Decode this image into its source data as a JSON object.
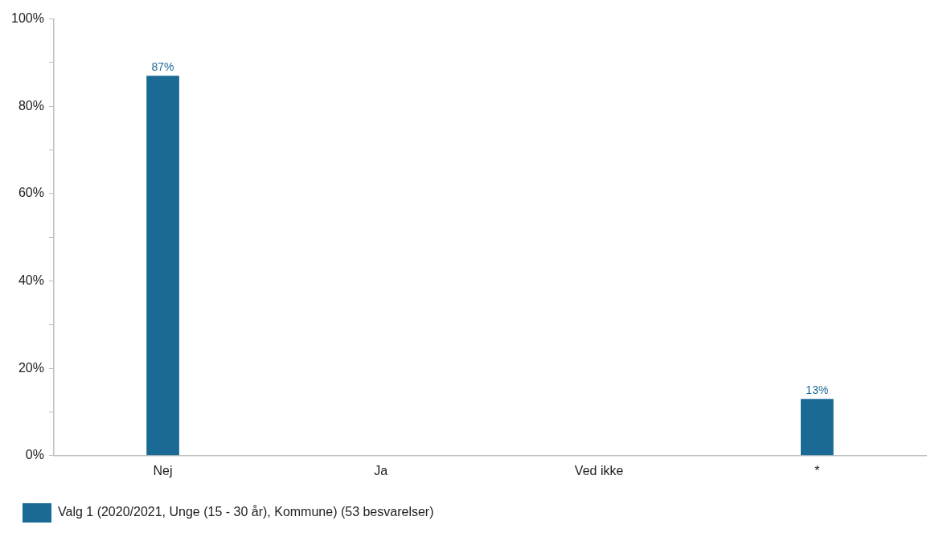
{
  "chart_data": {
    "type": "bar",
    "categories": [
      "Nej",
      "Ja",
      "Ved ikke",
      "*"
    ],
    "series": [
      {
        "name": "Valg 1 (2020/2021, Unge (15 - 30 år), Kommune) (53 besvarelser)",
        "color": "#1b6a96",
        "values": [
          87,
          null,
          null,
          13
        ]
      }
    ],
    "ylim": [
      0,
      100
    ],
    "yticks": [
      {
        "value": 0,
        "label": "0%"
      },
      {
        "value": 10,
        "label": null
      },
      {
        "value": 20,
        "label": "20%"
      },
      {
        "value": 30,
        "label": null
      },
      {
        "value": 40,
        "label": "40%"
      },
      {
        "value": 50,
        "label": null
      },
      {
        "value": 60,
        "label": "60%"
      },
      {
        "value": 70,
        "label": null
      },
      {
        "value": 80,
        "label": "80%"
      },
      {
        "value": 90,
        "label": null
      },
      {
        "value": 100,
        "label": "100%"
      }
    ],
    "value_labels": [
      [
        "87%",
        null,
        null,
        "13%"
      ]
    ],
    "grid": false,
    "legend": "bottom left"
  }
}
